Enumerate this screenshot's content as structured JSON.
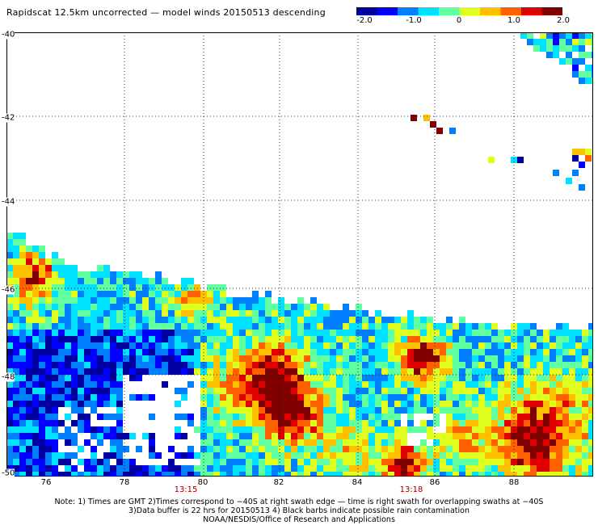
{
  "title": "Rapidscat 12.5km uncorrected — model winds 20150513 descending",
  "colorbar": {
    "ticks": [
      "-2.0",
      "-1.0",
      "0",
      "1.0",
      "2.0"
    ],
    "colors": [
      "#0000a0",
      "#0000ff",
      "#0080ff",
      "#00e0ff",
      "#60ffa0",
      "#e0ff20",
      "#ffc000",
      "#ff6000",
      "#e00000",
      "#800000"
    ]
  },
  "chart_data": {
    "type": "heatmap",
    "title": "Rapidscat 12.5km uncorrected — model winds 20150513 descending",
    "value_range": [
      -2.0,
      2.0
    ],
    "x_tick_labels": [
      "76",
      "78",
      "80",
      "82",
      "84",
      "86",
      "88"
    ],
    "y_tick_labels": [
      "-40",
      "-42",
      "-44",
      "-46",
      "-48",
      "-50"
    ],
    "xlim": [
      75,
      89.5
    ],
    "ylim": [
      -50,
      -40
    ],
    "grid": true,
    "time_labels": [
      {
        "x": 79.5,
        "text": "13:15"
      },
      {
        "x": 85.3,
        "text": "13:18"
      }
    ]
  },
  "notes": [
    "Note: 1) Times are GMT 2)Times correspond to −40S at right swath edge — time is right swath for overlapping swaths at −40S",
    "3)Data buffer is 22 hrs for 20150513 4) Black barbs indicate possible rain contamination",
    "NOAA/NESDIS/Office of Research and Applications"
  ]
}
